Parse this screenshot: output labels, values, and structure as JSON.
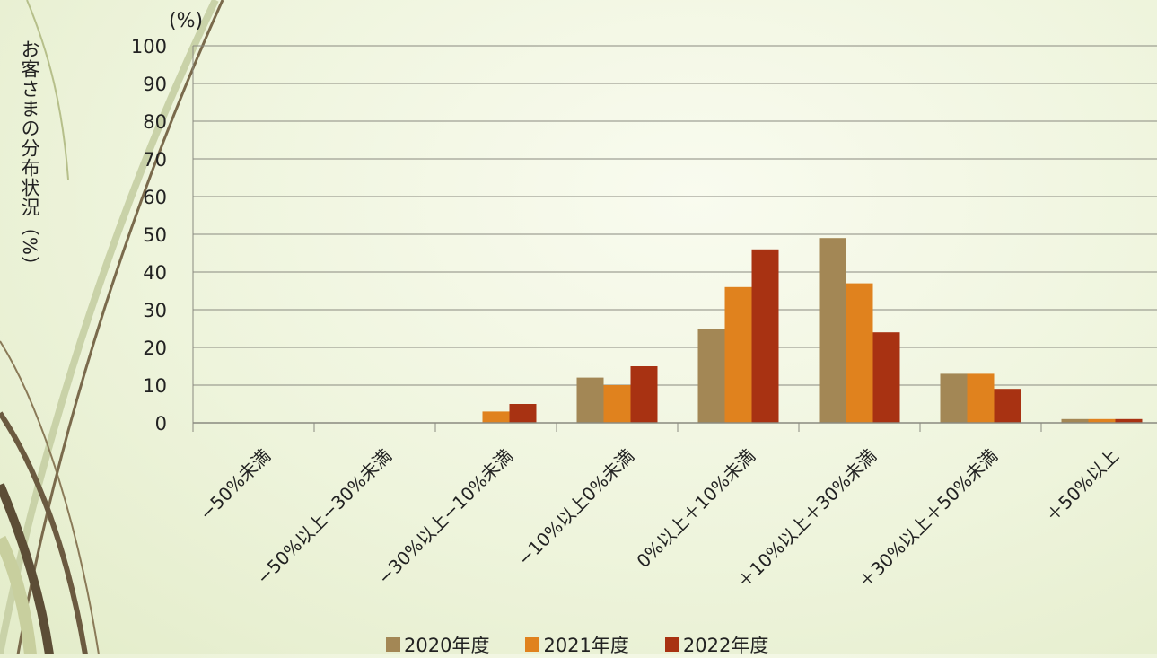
{
  "chart_data": {
    "type": "bar",
    "ylabel": "お客さまの分布状況（%）",
    "unit_label": "(%)",
    "ylim": [
      0,
      100
    ],
    "yticks": [
      0,
      10,
      20,
      30,
      40,
      50,
      60,
      70,
      80,
      90,
      100
    ],
    "grid": true,
    "legend_position": "bottom",
    "categories": [
      "−50%未満",
      "−50%以上−30%未満",
      "−30%以上−10%未満",
      "−10%以上0%未満",
      "0%以上＋10%未満",
      "＋10%以上＋30%未満",
      "＋30%以上＋50%未満",
      "＋50%以上"
    ],
    "series": [
      {
        "name": "2020年度",
        "color": "#a38755",
        "values": [
          0,
          0,
          0,
          12,
          25,
          49,
          13,
          1
        ]
      },
      {
        "name": "2021年度",
        "color": "#e0821e",
        "values": [
          0,
          0,
          3,
          10,
          36,
          37,
          13,
          1
        ]
      },
      {
        "name": "2022年度",
        "color": "#a83212",
        "values": [
          0,
          0,
          5,
          15,
          46,
          24,
          9,
          1
        ]
      }
    ]
  }
}
